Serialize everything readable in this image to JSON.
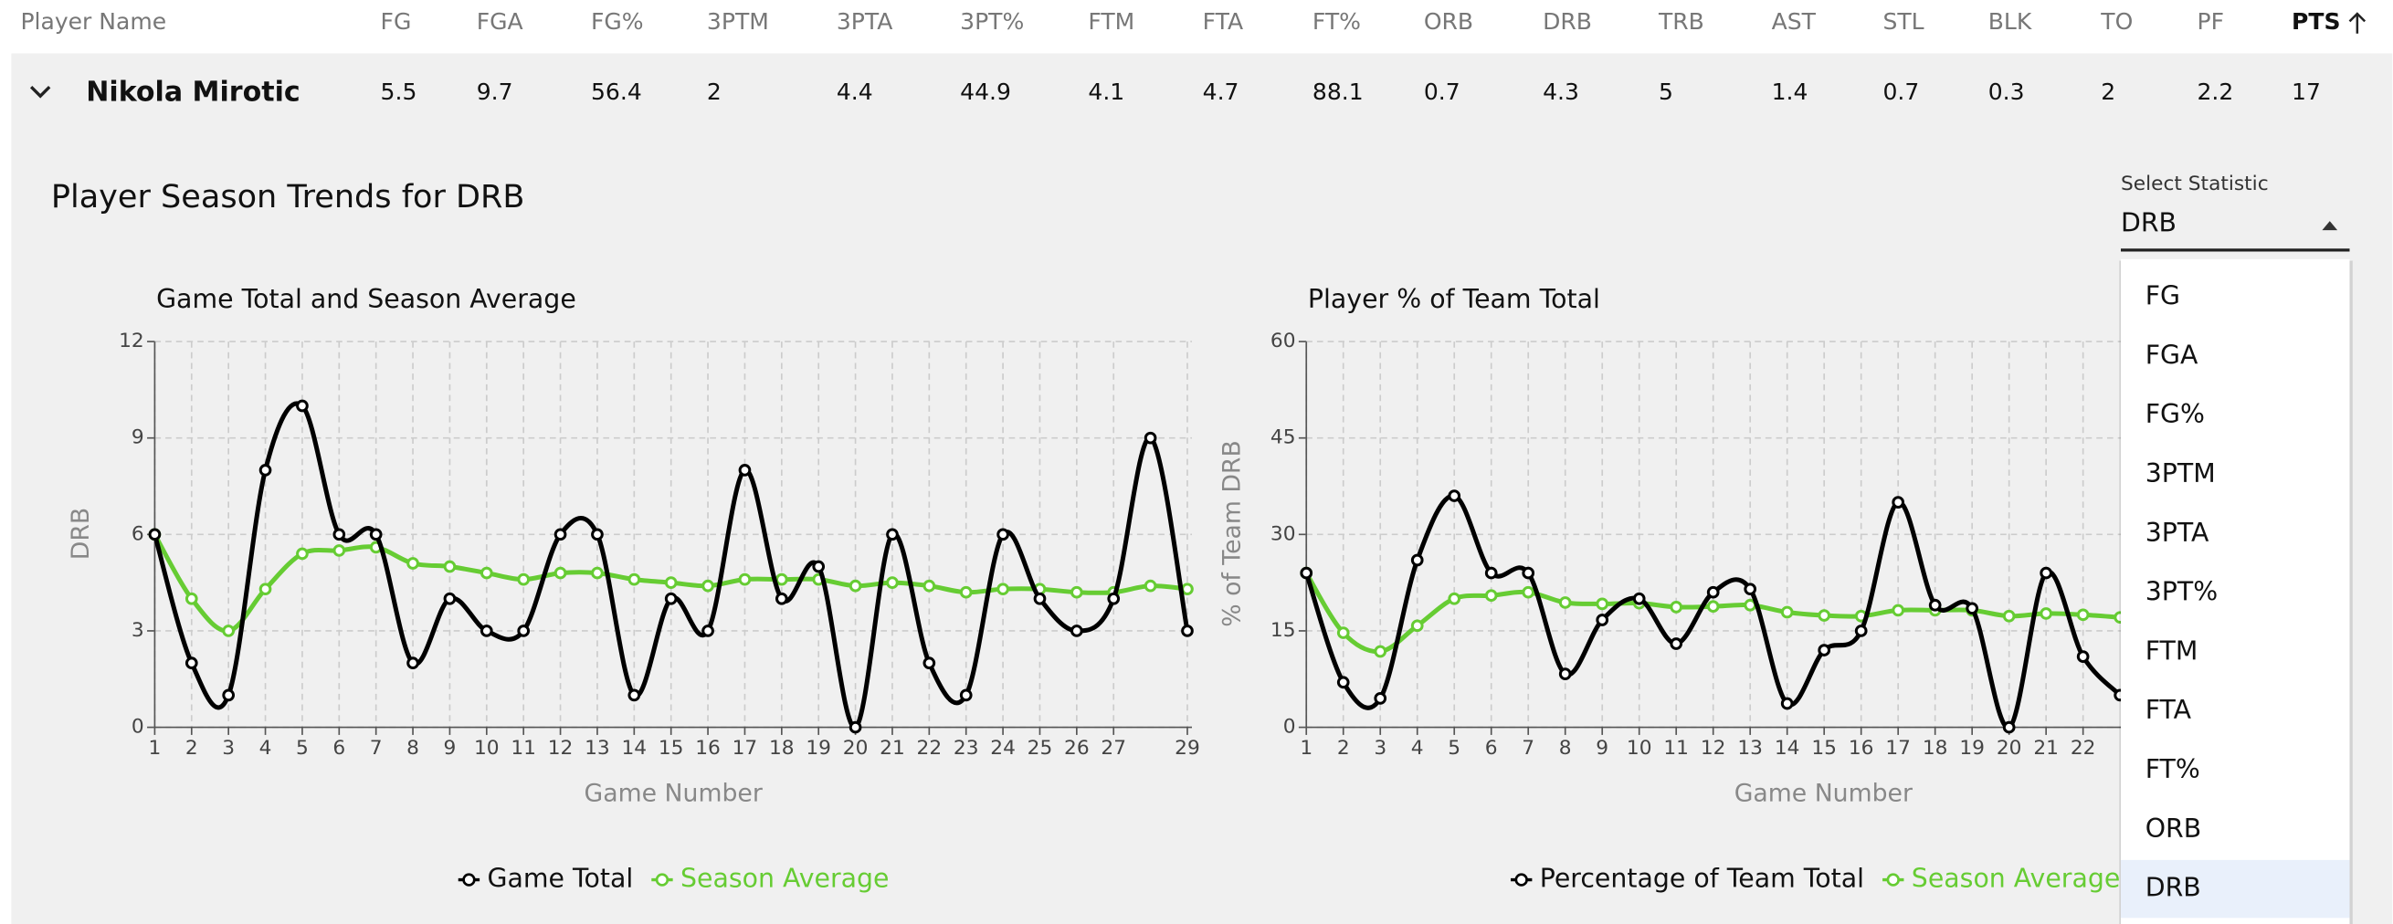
{
  "table": {
    "columns": [
      "Player Name",
      "FG",
      "FGA",
      "FG%",
      "3PTM",
      "3PTA",
      "3PT%",
      "FTM",
      "FTA",
      "FT%",
      "ORB",
      "DRB",
      "TRB",
      "AST",
      "STL",
      "BLK",
      "TO",
      "PF",
      "PTS"
    ],
    "row": [
      "Nikola Mirotic",
      5.5,
      9.7,
      56.4,
      2,
      4.4,
      44.9,
      4.1,
      4.7,
      88.1,
      0.7,
      4.3,
      5,
      1.4,
      0.7,
      0.3,
      2,
      2.2,
      17
    ]
  },
  "section_title": "Player Season Trends for DRB",
  "dropdown": {
    "label": "Select Statistic",
    "selected": "DRB",
    "options": [
      "FG",
      "FGA",
      "FG%",
      "3PTM",
      "3PTA",
      "3PT%",
      "FTM",
      "FTA",
      "FT%",
      "ORB",
      "DRB"
    ]
  },
  "chart_data": [
    {
      "type": "line",
      "title": "Game Total and Season Average",
      "x_label": "Game Number",
      "y_label": "DRB",
      "x": [
        1,
        2,
        3,
        4,
        5,
        6,
        7,
        8,
        9,
        10,
        11,
        12,
        13,
        14,
        15,
        16,
        17,
        18,
        19,
        20,
        21,
        22,
        23,
        24,
        25,
        26,
        27,
        28,
        29
      ],
      "xlim": [
        1,
        29
      ],
      "xticks": [
        1,
        2,
        3,
        4,
        5,
        6,
        7,
        8,
        9,
        10,
        11,
        12,
        13,
        14,
        15,
        16,
        17,
        18,
        19,
        20,
        21,
        22,
        23,
        24,
        25,
        26,
        27,
        29
      ],
      "ylim": [
        0,
        12
      ],
      "yticks": [
        0,
        3,
        6,
        9,
        12
      ],
      "grid": true,
      "series": [
        {
          "name": "Game Total",
          "color": "#000000",
          "values": [
            6,
            2,
            1,
            8,
            10,
            6,
            6,
            2,
            4,
            3,
            3,
            6,
            6,
            1,
            4,
            3,
            8,
            4,
            5,
            0,
            6,
            2,
            1,
            6,
            4,
            3,
            4,
            9,
            3
          ]
        },
        {
          "name": "Season Average",
          "color": "#66cc33",
          "values": [
            6,
            4,
            3,
            4.3,
            5.4,
            5.5,
            5.6,
            5.1,
            5.0,
            4.8,
            4.6,
            4.8,
            4.8,
            4.6,
            4.5,
            4.4,
            4.6,
            4.6,
            4.6,
            4.4,
            4.5,
            4.4,
            4.2,
            4.3,
            4.3,
            4.2,
            4.2,
            4.4,
            4.3
          ]
        }
      ]
    },
    {
      "type": "line",
      "title": "Player % of Team Total",
      "x_label": "Game Number",
      "y_label": "% of Team DRB",
      "x": [
        1,
        2,
        3,
        4,
        5,
        6,
        7,
        8,
        9,
        10,
        11,
        12,
        13,
        14,
        15,
        16,
        17,
        18,
        19,
        20,
        21,
        22,
        23
      ],
      "xlim": [
        1,
        29
      ],
      "xticks": [
        1,
        2,
        3,
        4,
        5,
        6,
        7,
        8,
        9,
        10,
        11,
        12,
        13,
        14,
        15,
        16,
        17,
        18,
        19,
        20,
        21,
        22
      ],
      "ylim": [
        0,
        60
      ],
      "yticks": [
        0,
        15,
        30,
        45,
        60
      ],
      "grid": true,
      "series": [
        {
          "name": "Percentage of Team Total",
          "color": "#000000",
          "values": [
            24,
            7,
            4.5,
            26,
            36,
            24,
            24,
            8.3,
            16.7,
            20,
            13,
            21,
            21.5,
            3.7,
            12,
            15,
            35,
            19,
            18.5,
            0,
            24,
            11,
            5
          ]
        },
        {
          "name": "Season Average",
          "color": "#66cc33",
          "values": [
            24,
            14.7,
            11.8,
            15.8,
            20,
            20.5,
            21,
            19.4,
            19.2,
            19.3,
            18.7,
            18.8,
            19,
            17.9,
            17.4,
            17.3,
            18.2,
            18.2,
            18.2,
            17.3,
            17.7,
            17.5,
            17.1
          ]
        }
      ]
    }
  ]
}
